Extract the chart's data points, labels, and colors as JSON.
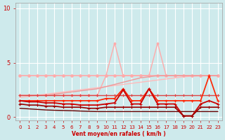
{
  "background_color": "#ceeaec",
  "grid_color": "#ffffff",
  "xlabel": "Vent moyen/en rafales ( km/h )",
  "xlim": [
    -0.5,
    23.5
  ],
  "ylim": [
    -0.3,
    10.5
  ],
  "yticks": [
    0,
    5,
    10
  ],
  "xticks": [
    0,
    1,
    2,
    3,
    4,
    5,
    6,
    7,
    8,
    9,
    10,
    11,
    12,
    13,
    14,
    15,
    16,
    17,
    18,
    19,
    20,
    21,
    22,
    23
  ],
  "series": [
    {
      "x": [
        0,
        1,
        2,
        3,
        4,
        5,
        6,
        7,
        8,
        9,
        10,
        11,
        12,
        13,
        14,
        15,
        16,
        17,
        18,
        19,
        20,
        21,
        22,
        23
      ],
      "y": [
        3.8,
        3.8,
        3.8,
        3.8,
        3.8,
        3.8,
        3.8,
        3.8,
        3.8,
        3.8,
        3.8,
        3.8,
        3.8,
        3.8,
        3.8,
        3.8,
        3.8,
        3.8,
        3.8,
        3.8,
        3.8,
        3.8,
        3.8,
        3.8
      ],
      "color": "#ffaaaa",
      "lw": 1.2,
      "marker": "o",
      "ms": 2.5,
      "zorder": 2
    },
    {
      "x": [
        0,
        1,
        2,
        3,
        4,
        5,
        6,
        7,
        8,
        9,
        10,
        11,
        12,
        13,
        14,
        15,
        16,
        17,
        18,
        19,
        20,
        21,
        22,
        23
      ],
      "y": [
        1.8,
        1.9,
        2.0,
        2.1,
        2.2,
        2.3,
        2.4,
        2.5,
        2.6,
        2.7,
        2.8,
        2.9,
        3.0,
        3.1,
        3.2,
        3.3,
        3.4,
        3.5,
        3.6,
        3.7,
        3.75,
        3.78,
        3.8,
        3.8
      ],
      "color": "#ffbbbb",
      "lw": 1.0,
      "marker": "None",
      "ms": 0,
      "zorder": 2
    },
    {
      "x": [
        0,
        1,
        2,
        3,
        4,
        5,
        6,
        7,
        8,
        9,
        10,
        11,
        12,
        13,
        14,
        15,
        16,
        17,
        18,
        19,
        20,
        21,
        22,
        23
      ],
      "y": [
        2.0,
        2.0,
        2.0,
        2.0,
        2.0,
        2.0,
        2.0,
        2.0,
        2.0,
        2.0,
        3.8,
        6.8,
        3.8,
        3.8,
        3.8,
        3.8,
        6.8,
        3.8,
        3.8,
        3.8,
        3.8,
        3.8,
        3.8,
        3.8
      ],
      "color": "#ffaaaa",
      "lw": 1.0,
      "marker": "o",
      "ms": 2.0,
      "zorder": 2
    },
    {
      "x": [
        0,
        1,
        2,
        3,
        4,
        5,
        6,
        7,
        8,
        9,
        10,
        11,
        12,
        13,
        14,
        15,
        16,
        17,
        18,
        19,
        20,
        21,
        22,
        23
      ],
      "y": [
        2.0,
        2.0,
        2.0,
        2.0,
        2.1,
        2.2,
        2.3,
        2.4,
        2.5,
        2.6,
        2.8,
        3.0,
        3.2,
        3.4,
        3.6,
        3.7,
        3.8,
        3.8,
        3.8,
        3.8,
        3.8,
        3.8,
        3.8,
        3.8
      ],
      "color": "#ee9999",
      "lw": 1.0,
      "marker": "None",
      "ms": 0,
      "zorder": 2
    },
    {
      "x": [
        0,
        1,
        2,
        3,
        4,
        5,
        6,
        7,
        8,
        9,
        10,
        11,
        12,
        13,
        14,
        15,
        16,
        17,
        18,
        19,
        20,
        21,
        22,
        23
      ],
      "y": [
        2.0,
        2.0,
        2.0,
        2.0,
        2.0,
        2.0,
        2.0,
        2.0,
        2.0,
        2.0,
        2.0,
        2.0,
        2.0,
        2.0,
        2.0,
        2.0,
        2.0,
        2.0,
        2.0,
        2.0,
        2.0,
        2.0,
        2.0,
        2.0
      ],
      "color": "#dd4444",
      "lw": 1.0,
      "marker": "+",
      "ms": 3.5,
      "zorder": 3
    },
    {
      "note": "bright red spiky, peaks at 12=2.6, 15=2.6, 22=3.8",
      "x": [
        0,
        1,
        2,
        3,
        4,
        5,
        6,
        7,
        8,
        9,
        10,
        11,
        12,
        13,
        14,
        15,
        16,
        17,
        18,
        19,
        20,
        21,
        22,
        23
      ],
      "y": [
        1.5,
        1.5,
        1.5,
        1.5,
        1.5,
        1.5,
        1.5,
        1.5,
        1.5,
        1.5,
        1.7,
        1.7,
        2.6,
        1.5,
        1.5,
        2.6,
        1.5,
        1.5,
        1.5,
        1.5,
        1.5,
        1.5,
        3.8,
        1.5
      ],
      "color": "#ff2200",
      "lw": 1.2,
      "marker": "+",
      "ms": 3.5,
      "zorder": 4
    },
    {
      "x": [
        0,
        1,
        2,
        3,
        4,
        5,
        6,
        7,
        8,
        9,
        10,
        11,
        12,
        13,
        14,
        15,
        16,
        17,
        18,
        19,
        20,
        21,
        22,
        23
      ],
      "y": [
        1.5,
        1.4,
        1.4,
        1.3,
        1.3,
        1.2,
        1.2,
        1.1,
        1.1,
        1.1,
        1.2,
        1.3,
        2.5,
        1.2,
        1.2,
        2.6,
        1.2,
        1.2,
        1.2,
        0.1,
        0.1,
        1.2,
        1.5,
        1.2
      ],
      "color": "#cc0000",
      "lw": 1.3,
      "marker": "+",
      "ms": 3.0,
      "zorder": 4
    },
    {
      "x": [
        0,
        1,
        2,
        3,
        4,
        5,
        6,
        7,
        8,
        9,
        10,
        11,
        12,
        13,
        14,
        15,
        16,
        17,
        18,
        19,
        20,
        21,
        22,
        23
      ],
      "y": [
        1.2,
        1.1,
        1.1,
        1.0,
        1.0,
        0.9,
        0.9,
        0.9,
        0.8,
        0.8,
        0.9,
        0.9,
        0.9,
        0.9,
        0.9,
        0.9,
        0.9,
        0.9,
        0.9,
        0.1,
        0.1,
        0.9,
        0.9,
        0.9
      ],
      "color": "#990000",
      "lw": 1.2,
      "marker": "+",
      "ms": 2.5,
      "zorder": 4
    },
    {
      "x": [
        0,
        1,
        2,
        3,
        4,
        5,
        6,
        7,
        8,
        9,
        10,
        11,
        12,
        13,
        14,
        15,
        16,
        17,
        18,
        19,
        20,
        21,
        22,
        23
      ],
      "y": [
        0.8,
        0.75,
        0.7,
        0.65,
        0.62,
        0.6,
        0.58,
        0.55,
        0.52,
        0.5,
        0.5,
        0.5,
        0.5,
        0.5,
        0.5,
        0.5,
        0.5,
        0.5,
        0.5,
        0.5,
        0.5,
        0.5,
        0.5,
        0.5
      ],
      "color": "#660000",
      "lw": 1.0,
      "marker": "None",
      "ms": 0,
      "zorder": 3
    }
  ]
}
